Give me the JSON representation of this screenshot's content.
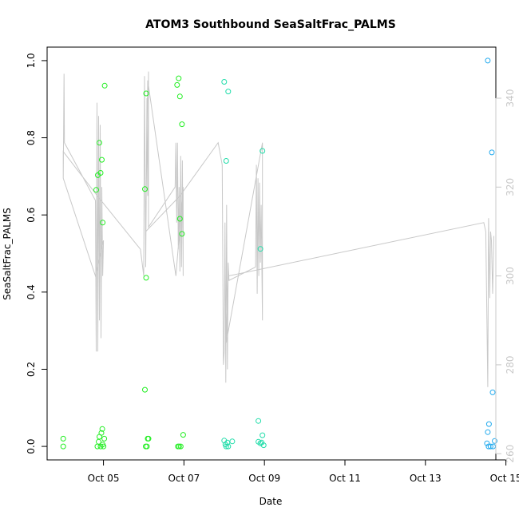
{
  "chart_data": {
    "type": "scatter",
    "title": "ATOM3 Southbound SeaSaltFrac_PALMS",
    "xlabel": "Date",
    "ylabel": "SeaSaltFrac_PALMS",
    "x_ticks": [
      "Oct 05",
      "Oct 07",
      "Oct 09",
      "Oct 11",
      "Oct 13",
      "Oct 15"
    ],
    "y_ticks": [
      "0.0",
      "0.2",
      "0.4",
      "0.6",
      "0.8",
      "1.0"
    ],
    "y2_ticks": [
      "260",
      "280",
      "300",
      "320",
      "340"
    ],
    "xlim": [
      3.6,
      14.75
    ],
    "ylim": [
      -0.035,
      1.035
    ],
    "y2lim": [
      258.6,
      351.5
    ],
    "grid": false,
    "legend": "none",
    "point_colors": {
      "green": "#22ee22",
      "teal": "#22ddaa",
      "blue": "#22aaee"
    },
    "line_color": "#c8c8c8",
    "series": [
      {
        "points": [
          {
            "x": 4.0,
            "y": 0.0,
            "color": "green"
          },
          {
            "x": 4.0,
            "y": 0.02,
            "color": "green"
          },
          {
            "x": 4.82,
            "y": 0.665,
            "color": "green"
          },
          {
            "x": 4.86,
            "y": 0.703,
            "color": "green"
          },
          {
            "x": 4.9,
            "y": 0.787,
            "color": "green"
          },
          {
            "x": 4.93,
            "y": 0.709,
            "color": "green"
          },
          {
            "x": 4.96,
            "y": 0.743,
            "color": "green"
          },
          {
            "x": 4.98,
            "y": 0.58,
            "color": "green"
          },
          {
            "x": 5.03,
            "y": 0.935,
            "color": "green"
          },
          {
            "x": 4.85,
            "y": 0.0,
            "color": "green"
          },
          {
            "x": 4.88,
            "y": 0.012,
            "color": "green"
          },
          {
            "x": 4.9,
            "y": 0.025,
            "color": "green"
          },
          {
            "x": 4.93,
            "y": 0.0,
            "color": "green"
          },
          {
            "x": 4.95,
            "y": 0.035,
            "color": "green"
          },
          {
            "x": 4.97,
            "y": 0.045,
            "color": "green"
          },
          {
            "x": 4.98,
            "y": 0.005,
            "color": "green"
          },
          {
            "x": 5.0,
            "y": 0.0,
            "color": "green"
          },
          {
            "x": 5.02,
            "y": 0.02,
            "color": "green"
          },
          {
            "x": 6.03,
            "y": 0.667,
            "color": "green"
          },
          {
            "x": 6.06,
            "y": 0.437,
            "color": "green"
          },
          {
            "x": 6.06,
            "y": 0.915,
            "color": "green"
          },
          {
            "x": 6.03,
            "y": 0.147,
            "color": "green"
          },
          {
            "x": 6.05,
            "y": 0.0,
            "color": "green"
          },
          {
            "x": 6.08,
            "y": 0.0,
            "color": "green"
          },
          {
            "x": 6.1,
            "y": 0.02,
            "color": "green"
          },
          {
            "x": 6.12,
            "y": 0.02,
            "color": "green"
          },
          {
            "x": 6.83,
            "y": 0.937,
            "color": "green"
          },
          {
            "x": 6.87,
            "y": 0.954,
            "color": "green"
          },
          {
            "x": 6.9,
            "y": 0.907,
            "color": "green"
          },
          {
            "x": 6.95,
            "y": 0.835,
            "color": "green"
          },
          {
            "x": 6.9,
            "y": 0.59,
            "color": "green"
          },
          {
            "x": 6.95,
            "y": 0.551,
            "color": "green"
          },
          {
            "x": 6.85,
            "y": 0.0,
            "color": "green"
          },
          {
            "x": 6.88,
            "y": 0.0,
            "color": "green"
          },
          {
            "x": 6.92,
            "y": 0.0,
            "color": "green"
          },
          {
            "x": 6.98,
            "y": 0.03,
            "color": "green"
          },
          {
            "x": 8.0,
            "y": 0.945,
            "color": "teal"
          },
          {
            "x": 8.1,
            "y": 0.92,
            "color": "teal"
          },
          {
            "x": 8.05,
            "y": 0.74,
            "color": "teal"
          },
          {
            "x": 8.0,
            "y": 0.015,
            "color": "teal"
          },
          {
            "x": 8.03,
            "y": 0.005,
            "color": "teal"
          },
          {
            "x": 8.05,
            "y": 0.0,
            "color": "teal"
          },
          {
            "x": 8.08,
            "y": 0.01,
            "color": "teal"
          },
          {
            "x": 8.1,
            "y": 0.0,
            "color": "teal"
          },
          {
            "x": 8.2,
            "y": 0.013,
            "color": "teal"
          },
          {
            "x": 8.95,
            "y": 0.766,
            "color": "teal"
          },
          {
            "x": 8.9,
            "y": 0.512,
            "color": "teal"
          },
          {
            "x": 8.85,
            "y": 0.066,
            "color": "teal"
          },
          {
            "x": 8.95,
            "y": 0.029,
            "color": "teal"
          },
          {
            "x": 8.85,
            "y": 0.012,
            "color": "teal"
          },
          {
            "x": 8.9,
            "y": 0.008,
            "color": "teal"
          },
          {
            "x": 8.93,
            "y": 0.01,
            "color": "teal"
          },
          {
            "x": 8.98,
            "y": 0.003,
            "color": "teal"
          },
          {
            "x": 14.55,
            "y": 1.0,
            "color": "blue"
          },
          {
            "x": 14.65,
            "y": 0.762,
            "color": "blue"
          },
          {
            "x": 14.67,
            "y": 0.14,
            "color": "blue"
          },
          {
            "x": 14.58,
            "y": 0.058,
            "color": "blue"
          },
          {
            "x": 14.55,
            "y": 0.037,
            "color": "blue"
          },
          {
            "x": 14.53,
            "y": 0.008,
            "color": "blue"
          },
          {
            "x": 14.57,
            "y": 0.0,
            "color": "blue"
          },
          {
            "x": 14.62,
            "y": 0.0,
            "color": "blue"
          },
          {
            "x": 14.68,
            "y": 0.0,
            "color": "blue"
          },
          {
            "x": 14.72,
            "y": 0.014,
            "color": "blue"
          }
        ]
      },
      {
        "axis": "right",
        "line": [
          [
            4.0,
            322
          ],
          [
            4.02,
            345.5
          ],
          [
            4.03,
            330
          ],
          [
            4.8,
            317
          ],
          [
            4.82,
            283
          ],
          [
            4.84,
            339
          ],
          [
            4.86,
            283
          ],
          [
            4.88,
            336
          ],
          [
            4.9,
            290
          ],
          [
            4.92,
            334
          ],
          [
            4.94,
            286
          ],
          [
            4.96,
            320
          ],
          [
            4.98,
            300
          ],
          [
            5.0,
            308
          ],
          [
            4.8,
            300
          ],
          [
            4.0,
            322
          ],
          [
            4.0,
            328
          ],
          [
            4.85,
            318
          ],
          [
            5.92,
            306
          ],
          [
            6.0,
            300
          ],
          [
            6.02,
            345
          ],
          [
            6.05,
            302
          ],
          [
            6.08,
            340
          ],
          [
            6.1,
            318
          ],
          [
            6.12,
            346
          ],
          [
            6.12,
            311
          ],
          [
            6.78,
            320
          ],
          [
            6.8,
            330
          ],
          [
            6.82,
            312
          ],
          [
            6.84,
            330
          ],
          [
            6.86,
            306
          ],
          [
            6.88,
            320
          ],
          [
            6.9,
            301
          ],
          [
            6.92,
            327
          ],
          [
            6.94,
            302
          ],
          [
            6.96,
            326
          ],
          [
            6.98,
            300
          ],
          [
            6.98,
            320
          ],
          [
            6.8,
            300
          ],
          [
            6.1,
            344
          ],
          [
            6.05,
            310
          ],
          [
            6.9,
            318
          ],
          [
            7.85,
            330
          ],
          [
            7.95,
            325
          ],
          [
            7.98,
            280
          ],
          [
            8.0,
            283
          ],
          [
            8.02,
            312
          ],
          [
            8.04,
            276
          ],
          [
            8.06,
            316
          ],
          [
            8.08,
            279
          ],
          [
            8.1,
            303
          ],
          [
            8.12,
            299
          ],
          [
            8.78,
            302
          ],
          [
            8.8,
            325
          ],
          [
            8.82,
            296
          ],
          [
            8.84,
            322
          ],
          [
            8.86,
            300
          ],
          [
            8.88,
            321
          ],
          [
            8.9,
            303
          ],
          [
            8.92,
            316
          ],
          [
            8.95,
            290
          ],
          [
            8.95,
            330
          ],
          [
            8.05,
            285
          ],
          [
            8.1,
            300
          ],
          [
            14.45,
            312
          ],
          [
            14.5,
            310
          ],
          [
            14.55,
            275
          ],
          [
            14.57,
            313
          ],
          [
            14.6,
            295
          ],
          [
            14.62,
            310
          ],
          [
            14.64,
            308
          ],
          [
            14.67,
            296
          ],
          [
            14.7,
            309
          ]
        ]
      }
    ]
  }
}
